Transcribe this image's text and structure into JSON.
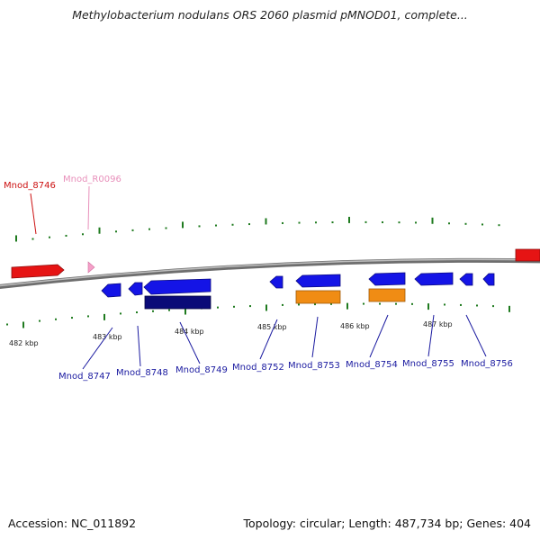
{
  "title": "Methylobacterium nodulans ORS 2060 plasmid pMNOD01, complete...",
  "footer": {
    "accession": "Accession: NC_011892",
    "topology": "Topology: circular; Length: 487,734 bp; Genes: 404"
  },
  "colors": {
    "backbone": "#8c8c8c",
    "tick": "#1e7a1e",
    "gene_blue": "#1414e6",
    "gene_navy": "#0a0a78",
    "gene_orange": "#f08c14",
    "gene_red": "#e61414",
    "gene_pink": "#f5a0c8",
    "label_blue": "#1a1aa0",
    "label_red": "#cc1111",
    "label_pink": "#e890bb"
  },
  "axis": {
    "kbp_labels": [
      "482 kbp",
      "483 kbp",
      "484 kbp",
      "485 kbp",
      "486 kbp",
      "487 kbp"
    ]
  },
  "genes": [
    {
      "name": "Mnod_8746",
      "color": "red",
      "strand": "+",
      "track": "forward"
    },
    {
      "name": "Mnod_R0096",
      "color": "pink",
      "strand": "+",
      "track": "forward"
    },
    {
      "name": "Mnod_8747",
      "color": "blue",
      "strand": "-",
      "track": "reverse"
    },
    {
      "name": "Mnod_8748",
      "color": "blue",
      "strand": "-",
      "track": "reverse"
    },
    {
      "name": "Mnod_8749",
      "color": "blue",
      "strand": "-",
      "track": "reverse"
    },
    {
      "name": "Mnod_8752",
      "color": "blue",
      "strand": "-",
      "track": "reverse"
    },
    {
      "name": "Mnod_8753",
      "color": "blue",
      "strand": "-",
      "track": "reverse"
    },
    {
      "name": "Mnod_8754",
      "color": "blue",
      "strand": "-",
      "track": "reverse"
    },
    {
      "name": "Mnod_8755",
      "color": "blue",
      "strand": "-",
      "track": "reverse"
    },
    {
      "name": "Mnod_8756",
      "color": "blue",
      "strand": "-",
      "track": "reverse"
    },
    {
      "name": "",
      "color": "red",
      "strand": "+",
      "track": "forward"
    }
  ],
  "features": [
    {
      "color": "navy"
    },
    {
      "color": "orange"
    },
    {
      "color": "orange"
    }
  ]
}
